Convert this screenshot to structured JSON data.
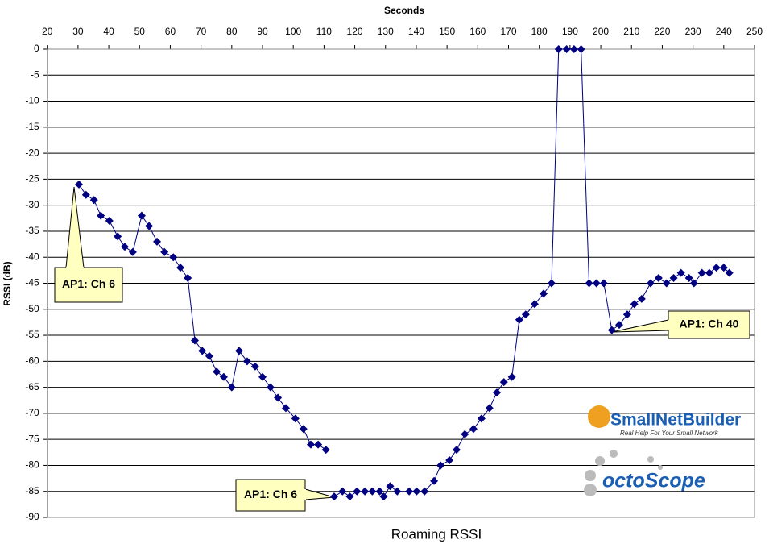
{
  "chart_data": {
    "type": "line",
    "title": "Seconds",
    "x_label": "Roaming RSSI",
    "y_label": "RSSI (dB)",
    "xlim": [
      20,
      250
    ],
    "xticks": [
      20,
      30,
      40,
      50,
      60,
      70,
      80,
      90,
      100,
      110,
      120,
      130,
      140,
      150,
      160,
      170,
      180,
      190,
      200,
      210,
      220,
      230,
      240,
      250
    ],
    "ylim": [
      -90,
      0
    ],
    "yticks": [
      0,
      -5,
      -10,
      -15,
      -20,
      -25,
      -30,
      -35,
      -40,
      -45,
      -50,
      -55,
      -60,
      -65,
      -70,
      -75,
      -80,
      -85,
      -90
    ],
    "grid": true,
    "series": [
      {
        "color": "#000080",
        "x": [
          30.3,
          32.6,
          35.2,
          37.4,
          40.2,
          42.9,
          45.2,
          47.8,
          50.7,
          53.1,
          55.7,
          58.1,
          61,
          63.3,
          65.7,
          68,
          70.4,
          72.7,
          75.1,
          77.4,
          80,
          82.4,
          85,
          87.6,
          90,
          92.6,
          95,
          97.6,
          100.7,
          103.3,
          105.7,
          108.1,
          110.6,
          112,
          113.3,
          116,
          118.4,
          120.7,
          123.3,
          125.7,
          128.1,
          129.4,
          131.5,
          133.8,
          137.7,
          140.1,
          142.7,
          145.8,
          147.9,
          150.8,
          153.1,
          155.8,
          158.6,
          161.2,
          163.8,
          166.2,
          168.5,
          171.1,
          173.5,
          175.6,
          178.5,
          181.4,
          184,
          186.3,
          188.9,
          191.3,
          193.6,
          196.2,
          198.6,
          201,
          203.6,
          206,
          208.6,
          210.9,
          213.3,
          216.2,
          218.8,
          221.4,
          223.7,
          226.1,
          228.7,
          230.3,
          232.9,
          235.3,
          237.6,
          240,
          241.8
        ],
        "values": [
          -26,
          -28,
          -29,
          -32,
          -33,
          -36,
          -38,
          -39,
          -32,
          -34,
          -37,
          -39,
          -40,
          -42,
          -44,
          -56,
          -58,
          -59,
          -62,
          -63,
          -65,
          -58,
          -60,
          -61,
          -63,
          -65,
          -67,
          -69,
          -71,
          -73,
          -76,
          -76,
          -77,
          null,
          -86,
          -85,
          -86,
          -85,
          -85,
          -85,
          -85,
          -86,
          -84,
          -85,
          -85,
          -85,
          -85,
          -83,
          -80,
          -79,
          -77,
          -74,
          -73,
          -71,
          -69,
          -66,
          -64,
          -63,
          -52,
          -51,
          -49,
          -47,
          -45,
          0,
          0,
          0,
          0,
          -45,
          -45,
          -45,
          -54,
          -53,
          -51,
          -49,
          -48,
          -45,
          -44,
          -45,
          -44,
          -43,
          -44,
          -45,
          -43,
          -43,
          -42,
          -42,
          -43
        ]
      }
    ],
    "annotations": [
      "AP1: Ch 6",
      "AP1: Ch 6",
      "AP1: Ch 40"
    ],
    "logos": [
      "SmallNetBuilder",
      "Real Help For Your Small Network",
      "octoScope"
    ]
  }
}
